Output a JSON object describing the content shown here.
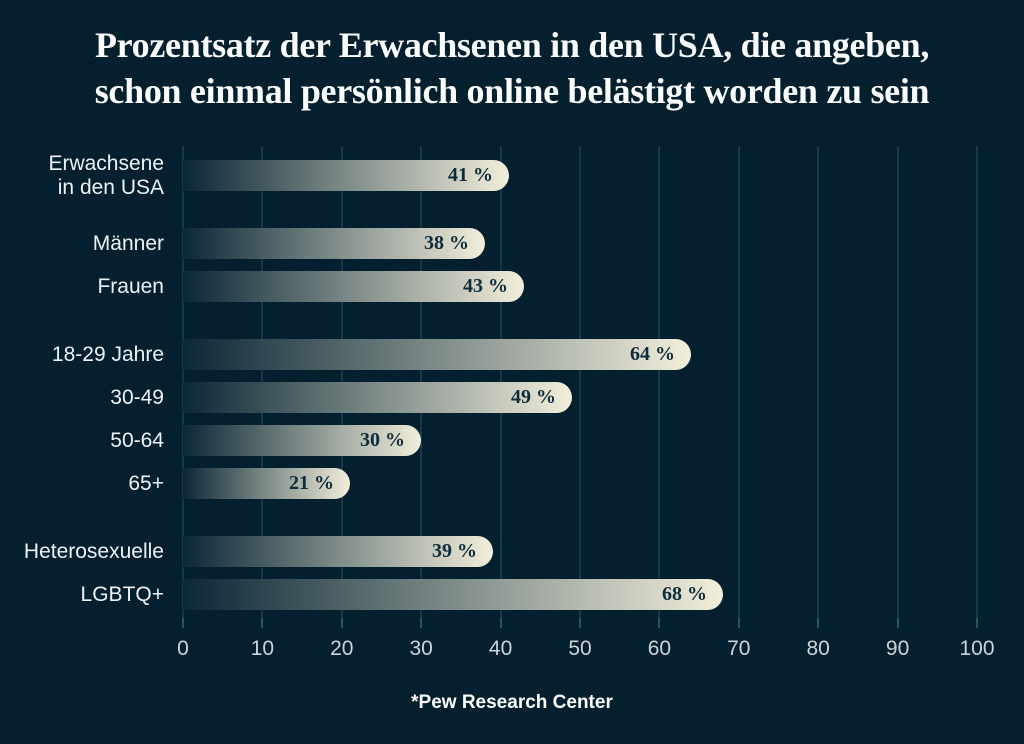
{
  "title": {
    "line1": "Prozentsatz der Erwachsenen in den USA, die angeben,",
    "line2": "schon einmal persönlich online belästigt worden zu sein"
  },
  "source": "*Pew Research Center",
  "chart_data": {
    "type": "bar",
    "orientation": "horizontal",
    "title": "Prozentsatz der Erwachsenen in den USA, die angeben, schon einmal persönlich online belästigt worden zu sein",
    "categories": [
      "Erwachsene\nin den USA",
      "Männer",
      "Frauen",
      "18-29 Jahre",
      "30-49",
      "50-64",
      "65+",
      "Heterosexuelle",
      "LGBTQ+"
    ],
    "values": [
      41,
      38,
      43,
      64,
      49,
      30,
      21,
      39,
      68
    ],
    "value_labels": [
      "41 %",
      "38 %",
      "43 %",
      "64 %",
      "49 %",
      "30 %",
      "21 %",
      "39 %",
      "68 %"
    ],
    "groups": [
      0,
      1,
      1,
      2,
      2,
      2,
      2,
      3,
      3
    ],
    "xlim": [
      0,
      100
    ],
    "x_ticks": [
      0,
      10,
      20,
      30,
      40,
      50,
      60,
      70,
      80,
      90,
      100
    ],
    "grid": true,
    "legend": false,
    "xlabel": "",
    "ylabel": "",
    "source": "*Pew Research Center",
    "colors": {
      "background": "#041f2d",
      "gridline": "#15384a",
      "bar_gradient_start": "#0b2836",
      "bar_gradient_end": "#f2eedb",
      "value_text": "#0e2c3a",
      "category_label": "#eef3f5",
      "tick_label": "#c9d5da",
      "title_text": "#fafcfd",
      "source_text": "#ffffff"
    }
  }
}
